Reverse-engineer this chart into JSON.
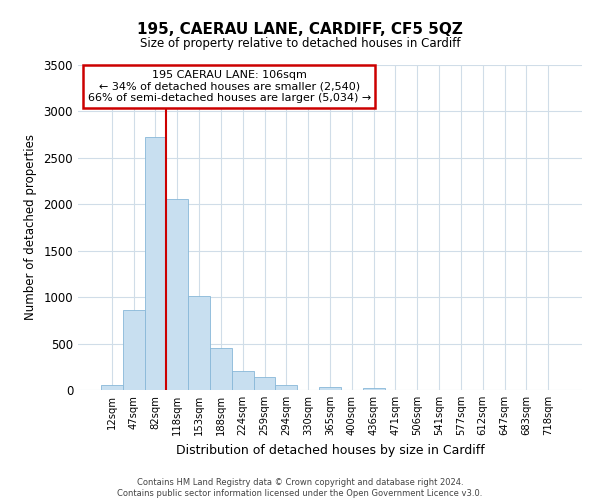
{
  "title": "195, CAERAU LANE, CARDIFF, CF5 5QZ",
  "subtitle": "Size of property relative to detached houses in Cardiff",
  "xlabel": "Distribution of detached houses by size in Cardiff",
  "ylabel": "Number of detached properties",
  "bar_color": "#c8dff0",
  "bar_edge_color": "#88b8d8",
  "categories": [
    "12sqm",
    "47sqm",
    "82sqm",
    "118sqm",
    "153sqm",
    "188sqm",
    "224sqm",
    "259sqm",
    "294sqm",
    "330sqm",
    "365sqm",
    "400sqm",
    "436sqm",
    "471sqm",
    "506sqm",
    "541sqm",
    "577sqm",
    "612sqm",
    "647sqm",
    "683sqm",
    "718sqm"
  ],
  "values": [
    55,
    860,
    2730,
    2060,
    1010,
    450,
    210,
    145,
    55,
    0,
    30,
    0,
    20,
    0,
    0,
    0,
    0,
    0,
    0,
    0,
    0
  ],
  "ylim": [
    0,
    3500
  ],
  "yticks": [
    0,
    500,
    1000,
    1500,
    2000,
    2500,
    3000,
    3500
  ],
  "annotation_title": "195 CAERAU LANE: 106sqm",
  "annotation_line1": "← 34% of detached houses are smaller (2,540)",
  "annotation_line2": "66% of semi-detached houses are larger (5,034) →",
  "annotation_box_color": "#ffffff",
  "annotation_box_edge_color": "#cc0000",
  "property_line_color": "#cc0000",
  "footer_line1": "Contains HM Land Registry data © Crown copyright and database right 2024.",
  "footer_line2": "Contains public sector information licensed under the Open Government Licence v3.0.",
  "grid_color": "#d0dde8"
}
